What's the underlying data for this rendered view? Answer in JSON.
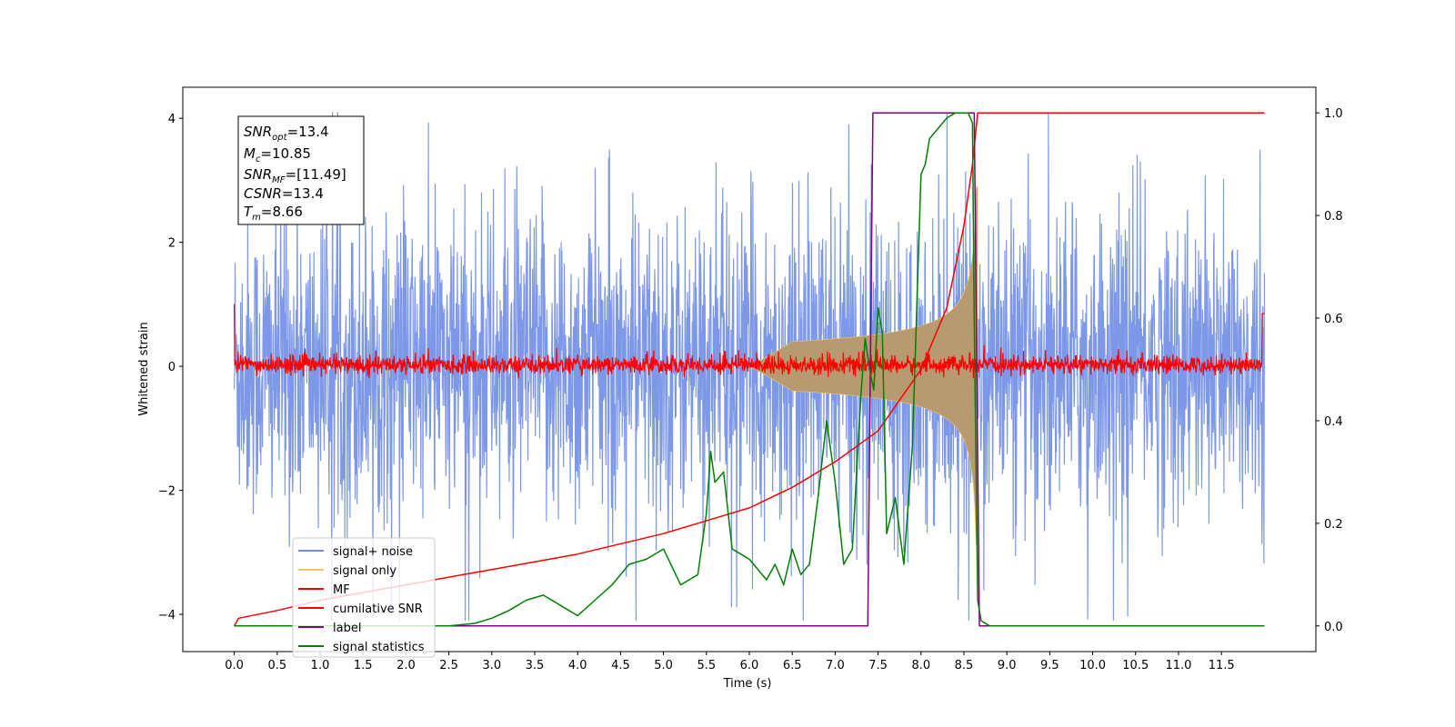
{
  "chart_data": {
    "type": "line",
    "xlabel": "Time (s)",
    "ylabel": "Whitened strain",
    "xlim": [
      -0.6,
      12.6
    ],
    "ylim": [
      -4.6,
      4.5
    ],
    "y2lim": [
      -0.05,
      1.05
    ],
    "x_ticks": [
      "0.0",
      "0.5",
      "1.0",
      "1.5",
      "2.0",
      "2.5",
      "3.0",
      "3.5",
      "4.0",
      "4.5",
      "5.0",
      "5.5",
      "6.0",
      "6.5",
      "7.0",
      "7.5",
      "8.0",
      "8.5",
      "9.0",
      "9.5",
      "10.0",
      "10.5",
      "11.0",
      "11.5"
    ],
    "y_ticks": [
      "4",
      "2",
      "0",
      "−2",
      "−4"
    ],
    "y2_ticks": [
      "1.0",
      "0.8",
      "0.6",
      "0.4",
      "0.2",
      "0.0"
    ],
    "annotations": {
      "snr_opt": "=13.4",
      "mc": "=10.85",
      "snr_mf": "=[11.49]",
      "csnr": "=13.4",
      "tm": "=8.66"
    },
    "legend_position": "lower-left",
    "series": [
      {
        "name": "signal+ noise",
        "color": "#6f8de6",
        "axis": "left",
        "description_values": {
          "noise_sigma": 1.0,
          "t_start": 0.0,
          "t_end": 12.0
        }
      },
      {
        "name": "signal only",
        "color": "#f5c36b",
        "axis": "left",
        "chirp": {
          "t_merge": 8.66,
          "amp_at_merge": 2.9
        }
      },
      {
        "name": "MF",
        "color": "#ff0000",
        "axis": "left",
        "points": [
          [
            0.0,
            1.0
          ],
          [
            0.02,
            0.1
          ],
          [
            6.0,
            0.0
          ],
          [
            11.98,
            0.0
          ],
          [
            12.0,
            0.85
          ]
        ]
      },
      {
        "name": "cumilative SNR",
        "color": "#ff0000",
        "axis": "right",
        "x": [
          0.0,
          0.05,
          0.5,
          1.0,
          2.0,
          3.0,
          4.0,
          5.0,
          6.0,
          6.5,
          7.0,
          7.5,
          8.0,
          8.3,
          8.5,
          8.6,
          8.66,
          8.7,
          12.0
        ],
        "y": [
          0.0,
          0.015,
          0.03,
          0.05,
          0.08,
          0.11,
          0.14,
          0.18,
          0.23,
          0.27,
          0.32,
          0.38,
          0.5,
          0.62,
          0.78,
          0.9,
          1.0,
          1.0,
          1.0
        ]
      },
      {
        "name": "label",
        "color": "#800080",
        "axis": "right",
        "x": [
          0.0,
          7.38,
          7.44,
          8.6,
          8.62,
          8.68,
          12.0
        ],
        "y": [
          0.0,
          0.0,
          1.0,
          1.0,
          1.0,
          0.0,
          0.0
        ]
      },
      {
        "name": "signal statistics",
        "color": "#008000",
        "axis": "right",
        "x": [
          0.0,
          0.25,
          0.5,
          1.0,
          1.5,
          2.0,
          2.5,
          2.8,
          3.0,
          3.2,
          3.4,
          3.6,
          3.8,
          4.0,
          4.2,
          4.4,
          4.6,
          4.8,
          5.0,
          5.2,
          5.4,
          5.5,
          5.55,
          5.6,
          5.7,
          5.8,
          5.9,
          6.0,
          6.2,
          6.3,
          6.4,
          6.5,
          6.6,
          6.7,
          6.8,
          6.9,
          7.0,
          7.1,
          7.2,
          7.3,
          7.35,
          7.4,
          7.45,
          7.5,
          7.55,
          7.6,
          7.7,
          7.8,
          7.9,
          8.0,
          8.05,
          8.1,
          8.2,
          8.3,
          8.4,
          8.5,
          8.55,
          8.6,
          8.62,
          8.66,
          8.7,
          8.8,
          9.0,
          12.0
        ],
        "y": [
          0.0,
          0.0,
          0.0,
          0.0,
          0.0,
          0.0,
          0.0,
          0.005,
          0.015,
          0.03,
          0.05,
          0.06,
          0.04,
          0.02,
          0.05,
          0.08,
          0.12,
          0.13,
          0.15,
          0.08,
          0.1,
          0.22,
          0.34,
          0.28,
          0.3,
          0.15,
          0.14,
          0.13,
          0.09,
          0.12,
          0.08,
          0.15,
          0.1,
          0.12,
          0.25,
          0.4,
          0.28,
          0.12,
          0.15,
          0.45,
          0.56,
          0.5,
          0.46,
          0.62,
          0.57,
          0.18,
          0.25,
          0.12,
          0.35,
          0.88,
          0.9,
          0.95,
          0.97,
          0.99,
          1.0,
          1.0,
          1.0,
          0.98,
          0.6,
          0.05,
          0.01,
          0.0,
          0.0,
          0.0
        ]
      }
    ]
  }
}
